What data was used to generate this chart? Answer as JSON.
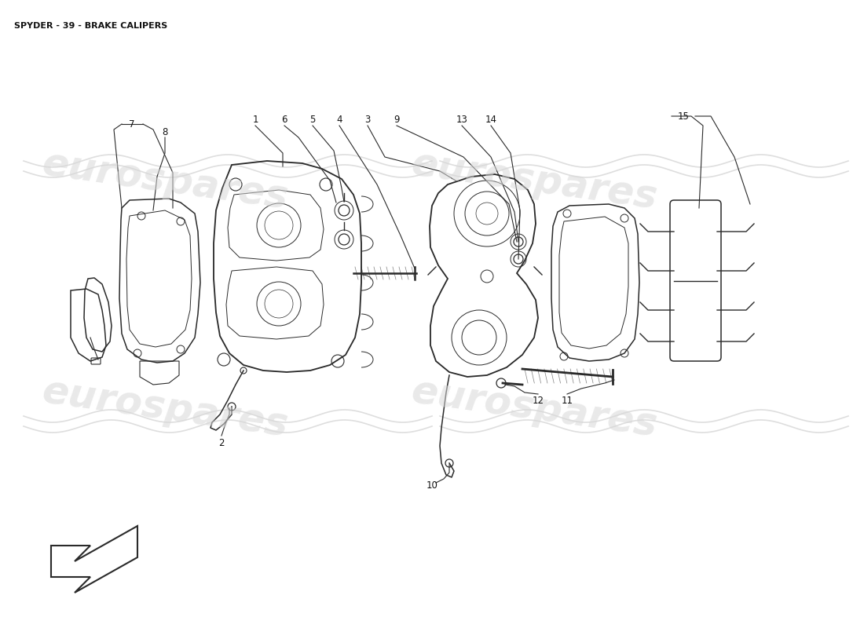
{
  "title": "SPYDER - 39 - BRAKE CALIPERS",
  "title_fontsize": 8,
  "background_color": "#ffffff",
  "watermark_text": "eurospares",
  "watermark_color": "#d8d8d8",
  "watermark_fontsize": 36,
  "line_color": "#2a2a2a",
  "lw_main": 1.1,
  "lw_thin": 0.7,
  "lw_leader": 0.8,
  "label_fontsize": 8.5
}
